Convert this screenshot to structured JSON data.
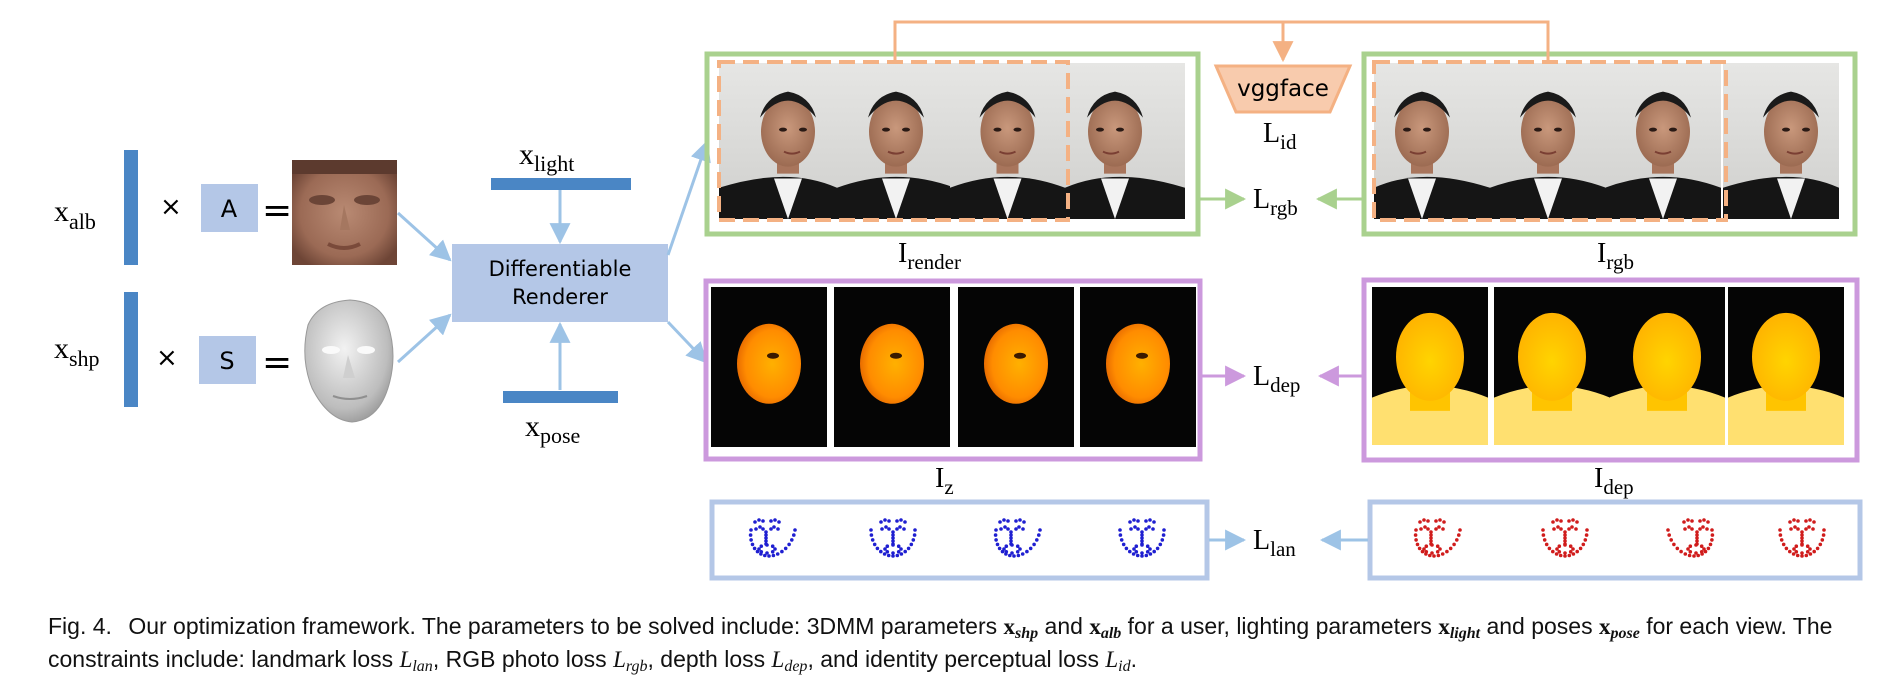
{
  "diagram": {
    "labels": {
      "x_alb": {
        "base": "x",
        "sub": "alb"
      },
      "x_shp": {
        "base": "x",
        "sub": "shp"
      },
      "x_light": {
        "base": "x",
        "sub": "light"
      },
      "x_pose": {
        "base": "x",
        "sub": "pose"
      },
      "times": "×",
      "equals": "=",
      "A": "A",
      "S": "S",
      "renderer_line1": "Differentiable",
      "renderer_line2": "Renderer",
      "vggface": "vggface",
      "L_id": {
        "base": "L",
        "sub": "id"
      },
      "L_rgb": {
        "base": "L",
        "sub": "rgb"
      },
      "L_dep": {
        "base": "L",
        "sub": "dep"
      },
      "L_lan": {
        "base": "L",
        "sub": "lan"
      },
      "I_render": {
        "base": "I",
        "sub": "render"
      },
      "I_rgb": {
        "base": "I",
        "sub": "rgb"
      },
      "I_z": {
        "base": "I",
        "sub": "z"
      },
      "I_dep": {
        "base": "I",
        "sub": "dep"
      }
    },
    "colors": {
      "block_blue": "#4a86c5",
      "box_fill": "#b4c7e7",
      "arrow_blue": "#9dc3e6",
      "green": "#a9d18e",
      "purple": "#cc99dd",
      "orange": "#f4b183",
      "landmark_blue": "#1f1fd1",
      "landmark_red": "#d01c1c"
    }
  },
  "caption": {
    "fig": "Fig. 4.",
    "t1": "Our optimization framework. The parameters to be solved include: 3DMM parameters ",
    "v_shp": "x",
    "v_shp_sub": "shp",
    "t2": " and ",
    "v_alb": "x",
    "v_alb_sub": "alb",
    "t3": " for a user, lighting parameters ",
    "v_light": "x",
    "v_light_sub": "light",
    "t4": " and poses ",
    "v_pose": "x",
    "v_pose_sub": "pose",
    "t5": " for each view. The constraints include: landmark loss ",
    "l_lan": "L",
    "l_lan_sub": "lan",
    "t6": ", RGB photo loss ",
    "l_rgb": "L",
    "l_rgb_sub": "rgb",
    "t7": ", depth loss ",
    "l_dep": "L",
    "l_dep_sub": "dep",
    "t8": ", and identity perceptual loss ",
    "l_id": "L",
    "l_id_sub": "id",
    "t9": "."
  }
}
